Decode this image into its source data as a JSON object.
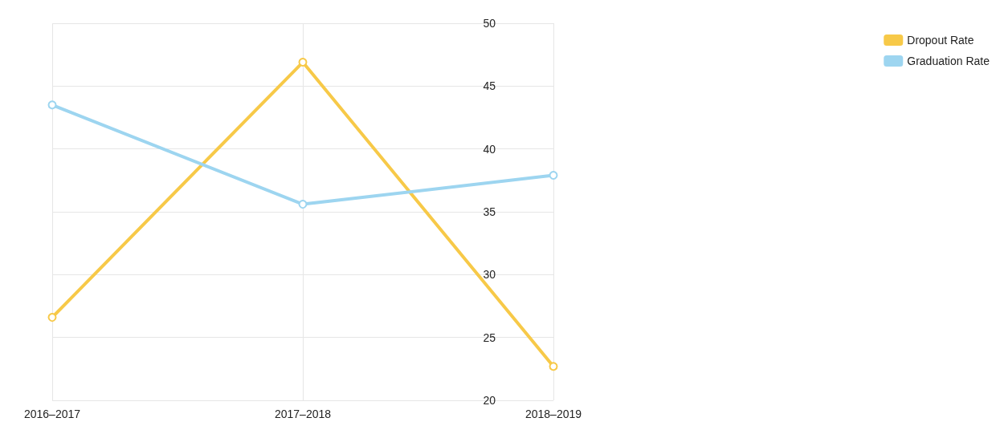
{
  "chart_data": {
    "type": "line",
    "categories": [
      "2016–2017",
      "2017–2018",
      "2018–2019"
    ],
    "series": [
      {
        "name": "Dropout Rate",
        "color": "#f7c948",
        "values": [
          26.6,
          46.9,
          22.7
        ]
      },
      {
        "name": "Graduation Rate",
        "color": "#9dd5f0",
        "values": [
          43.5,
          35.6,
          37.9
        ]
      }
    ],
    "ylim": [
      20,
      50
    ],
    "yticks": [
      20,
      25,
      30,
      35,
      40,
      45,
      50
    ],
    "grid": true,
    "legend": "top right",
    "marker": "circle"
  }
}
